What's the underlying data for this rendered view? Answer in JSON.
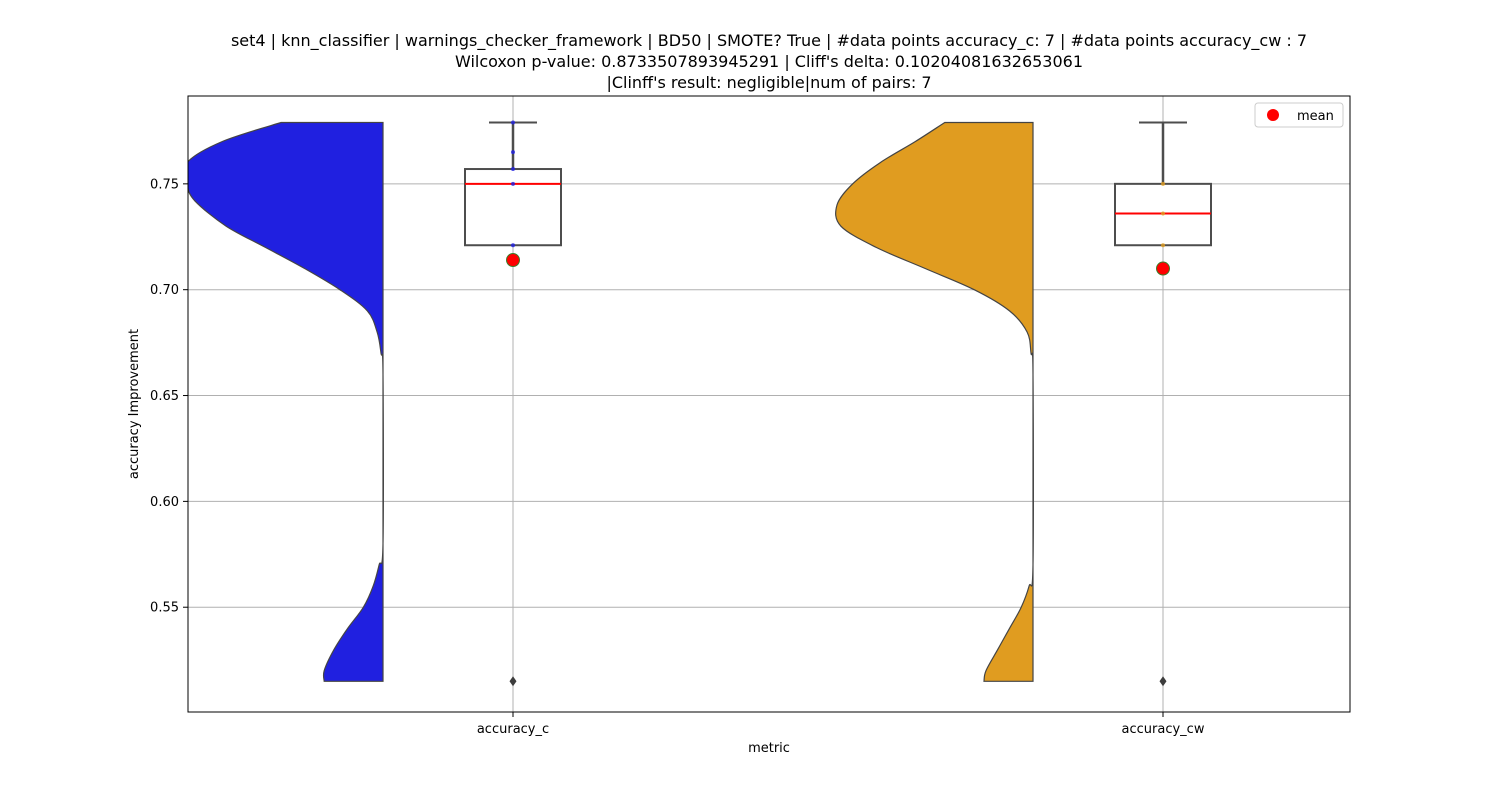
{
  "chart_data": {
    "type": "violin",
    "title_lines": [
      "set4 | knn_classifier | warnings_checker_framework | BD50 | SMOTE? True | #data points accuracy_c: 7 | #data points accuracy_cw : 7",
      "Wilcoxon p-value: 0.8733507893945291 | Cliff's delta: 0.10204081632653061",
      "|Clinff's result: negligible|num of pairs: 7"
    ],
    "xlabel": "metric",
    "ylabel": "accuracy Improvement",
    "categories": [
      "accuracy_c",
      "accuracy_cw"
    ],
    "ylim": [
      0.5005,
      0.7915
    ],
    "yticks": [
      0.55,
      0.6,
      0.65,
      0.7,
      0.75
    ],
    "ytick_labels": [
      "0.55",
      "0.60",
      "0.65",
      "0.70",
      "0.75"
    ],
    "grid": true,
    "legend": {
      "position": "top-right",
      "entries": [
        {
          "label": "mean",
          "color": "#ff0000"
        }
      ]
    },
    "series": [
      {
        "category": "accuracy_c",
        "color": "#2020e0",
        "density_curve": [
          [
            0.779,
            0.52
          ],
          [
            0.77,
            0.82
          ],
          [
            0.76,
            1.0
          ],
          [
            0.75,
            1.0
          ],
          [
            0.742,
            0.96
          ],
          [
            0.73,
            0.8
          ],
          [
            0.72,
            0.6
          ],
          [
            0.71,
            0.4
          ],
          [
            0.7,
            0.22
          ],
          [
            0.69,
            0.08
          ],
          [
            0.68,
            0.03
          ],
          [
            0.67,
            0.01
          ],
          [
            0.66,
            0.0
          ],
          [
            0.58,
            0.0
          ],
          [
            0.57,
            0.02
          ],
          [
            0.56,
            0.05
          ],
          [
            0.55,
            0.1
          ],
          [
            0.54,
            0.18
          ],
          [
            0.53,
            0.25
          ],
          [
            0.52,
            0.3
          ],
          [
            0.515,
            0.3
          ]
        ],
        "box": {
          "q1": 0.721,
          "median": 0.75,
          "q3": 0.757,
          "whisker_low": 0.721,
          "whisker_high": 0.779
        },
        "outliers": [
          0.515
        ],
        "points": [
          0.779,
          0.765,
          0.757,
          0.75,
          0.721
        ],
        "mean": 0.714
      },
      {
        "category": "accuracy_cw",
        "color": "#e09c20",
        "density_curve": [
          [
            0.779,
            0.45
          ],
          [
            0.77,
            0.6
          ],
          [
            0.76,
            0.78
          ],
          [
            0.75,
            0.92
          ],
          [
            0.74,
            1.0
          ],
          [
            0.73,
            0.98
          ],
          [
            0.72,
            0.8
          ],
          [
            0.71,
            0.55
          ],
          [
            0.7,
            0.3
          ],
          [
            0.69,
            0.12
          ],
          [
            0.68,
            0.03
          ],
          [
            0.67,
            0.01
          ],
          [
            0.66,
            0.0
          ],
          [
            0.57,
            0.0
          ],
          [
            0.56,
            0.02
          ],
          [
            0.55,
            0.06
          ],
          [
            0.54,
            0.12
          ],
          [
            0.53,
            0.18
          ],
          [
            0.52,
            0.24
          ],
          [
            0.515,
            0.25
          ]
        ],
        "box": {
          "q1": 0.721,
          "median": 0.736,
          "q3": 0.75,
          "whisker_low": 0.721,
          "whisker_high": 0.779
        },
        "outliers": [
          0.515
        ],
        "points": [
          0.75,
          0.736,
          0.721
        ],
        "mean": 0.71
      }
    ]
  }
}
